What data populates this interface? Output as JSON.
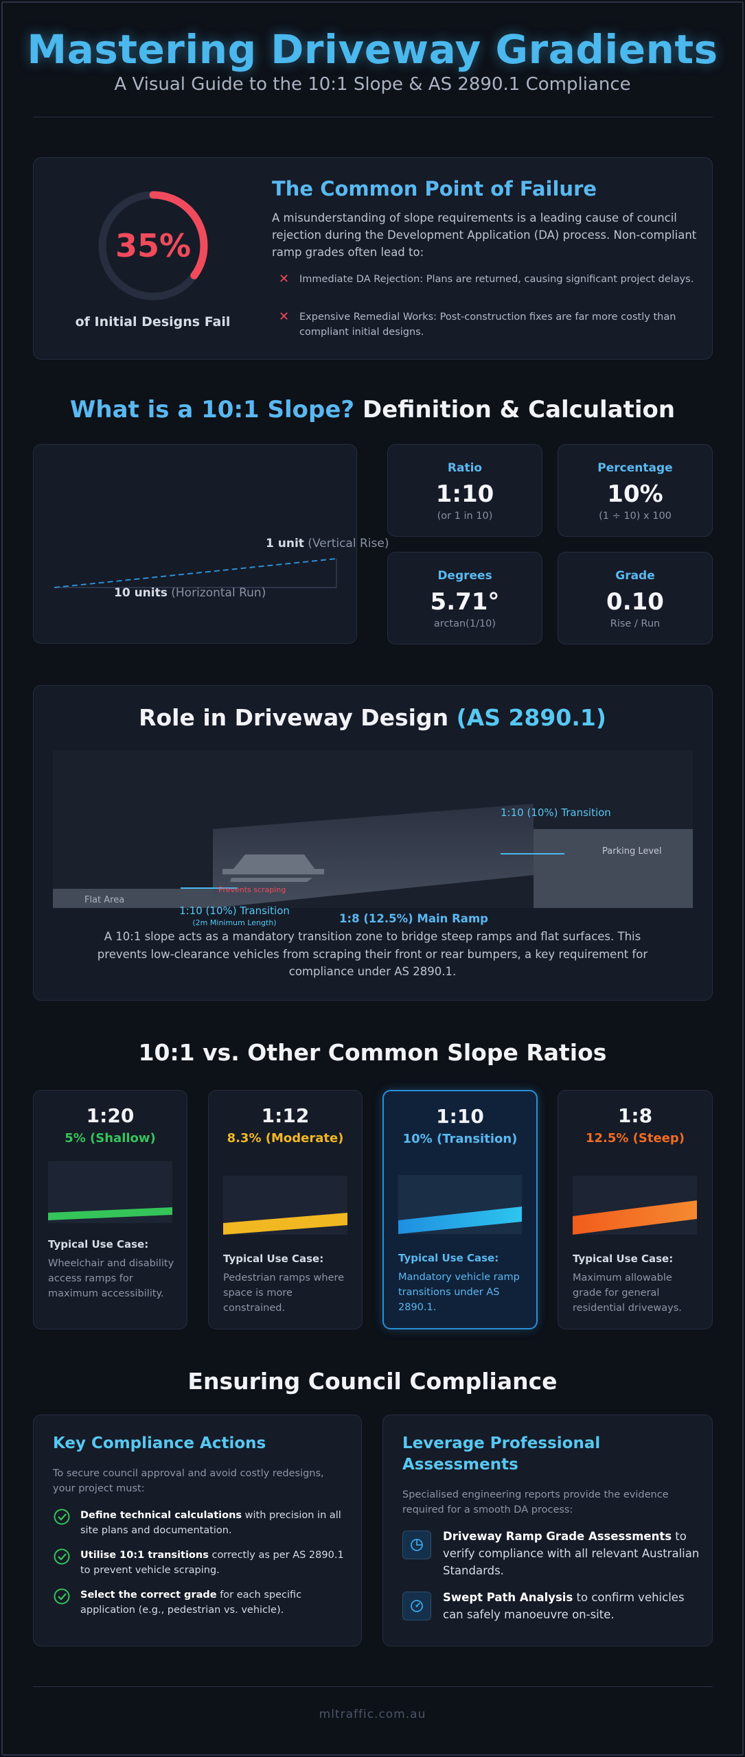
{
  "header": {
    "title": "Mastering Driveway Gradients",
    "subtitle": "A Visual Guide to the 10:1 Slope & AS 2890.1 Compliance"
  },
  "failure": {
    "percent": "35%",
    "percent_value": 0.35,
    "caption": "of Initial Designs Fail",
    "heading": "The Common Point of Failure",
    "paragraph": "A misunderstanding of slope requirements is a leading cause of council rejection during the Development Application (DA) process. Non-compliant ramp grades often lead to:",
    "items": [
      "Immediate DA Rejection: Plans are returned, causing significant project delays.",
      "Expensive Remedial Works: Post-construction fixes are far more costly than compliant initial designs."
    ],
    "colors": {
      "accent": "#f04b5c",
      "track": "#262e40"
    }
  },
  "definition": {
    "heading_highlight": "What is a 10:1 Slope?",
    "heading_rest": " Definition & Calculation",
    "diagram": {
      "rise_bold": "1 unit",
      "rise_rest": " (Vertical Rise)",
      "run_bold": "10 units",
      "run_rest": " (Horizontal Run)"
    },
    "metrics": [
      {
        "label": "Ratio",
        "value": "1:10",
        "sub": "(or 1 in 10)"
      },
      {
        "label": "Percentage",
        "value": "10%",
        "sub": "(1 ÷ 10) x 100"
      },
      {
        "label": "Degrees",
        "value": "5.71°",
        "sub": "arctan(1/10)"
      },
      {
        "label": "Grade",
        "value": "0.10",
        "sub": "Rise / Run"
      }
    ]
  },
  "role": {
    "heading": "Role in Driveway Design ",
    "heading_highlight": "(AS 2890.1)",
    "labels": {
      "flat_area": "Flat Area",
      "transition_left": "1:10 (10%) Transition",
      "min_length": "(2m Minimum Length)",
      "prevents": "Prevents scraping",
      "main_ramp": "1:8 (12.5%) Main Ramp",
      "transition_right": "1:10 (10%) Transition",
      "parking": "Parking Level"
    },
    "paragraph": "A 10:1 slope acts as a mandatory transition zone to bridge steep ramps and flat surfaces. This prevents low-clearance vehicles from scraping their front or rear bumpers, a key requirement for compliance under AS 2890.1."
  },
  "ratios": {
    "heading": "10:1 vs. Other Common Slope Ratios",
    "use_case_label": "Typical Use Case:",
    "items": [
      {
        "ratio": "1:20",
        "percent": "5% (Shallow)",
        "color": "#35c45a",
        "use": "Wheelchair and disability access ramps for maximum accessibility."
      },
      {
        "ratio": "1:12",
        "percent": "8.3% (Moderate)",
        "color": "#f2b822",
        "use": "Pedestrian ramps where space is more constrained."
      },
      {
        "ratio": "1:10",
        "percent": "10% (Transition)",
        "color": "#1fa7e8",
        "use": "Mandatory vehicle ramp transitions under AS 2890.1."
      },
      {
        "ratio": "1:8",
        "percent": "12.5% (Steep)",
        "color": "#f26b22",
        "use": "Maximum allowable grade for general residential driveways."
      }
    ]
  },
  "compliance": {
    "heading": "Ensuring Council Compliance",
    "left": {
      "heading": "Key Compliance Actions",
      "intro": "To secure council approval and avoid costly redesigns, your project must:",
      "items": [
        {
          "bold": "Define technical calculations",
          "rest": " with precision in all site plans and documentation."
        },
        {
          "bold": "Utilise 10:1 transitions",
          "rest": " correctly as per AS 2890.1 to prevent vehicle scraping."
        },
        {
          "bold": "Select the correct grade",
          "rest": " for each specific application (e.g., pedestrian vs. vehicle)."
        }
      ]
    },
    "right": {
      "heading": "Leverage Professional Assessments",
      "intro": "Specialised engineering reports provide the evidence required for a smooth DA process:",
      "items": [
        {
          "icon": "pie-chart-icon",
          "bold": "Driveway Ramp Grade Assessments",
          "rest": " to verify compliance with all relevant Australian Standards."
        },
        {
          "icon": "gauge-icon",
          "bold": "Swept Path Analysis",
          "rest": " to confirm vehicles can safely manoeuvre on-site."
        }
      ]
    }
  },
  "footer": {
    "text": "mltraffic.com.au"
  }
}
